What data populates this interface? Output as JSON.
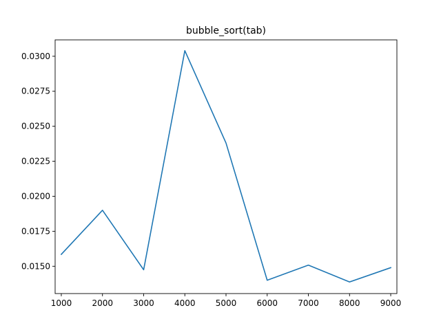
{
  "chart_data": {
    "type": "line",
    "title": "bubble_sort(tab)",
    "xlabel": "",
    "ylabel": "",
    "x": [
      1000,
      2000,
      3000,
      4000,
      5000,
      6000,
      7000,
      8000,
      9000
    ],
    "x_ticks": [
      "1000",
      "2000",
      "3000",
      "4000",
      "5000",
      "6000",
      "7000",
      "8000",
      "9000"
    ],
    "y_ticks": [
      "0.0150",
      "0.0175",
      "0.0200",
      "0.0225",
      "0.0250",
      "0.0275",
      "0.0300"
    ],
    "series": [
      {
        "color": "#1f77b4",
        "values": [
          0.01585,
          0.019,
          0.01475,
          0.0304,
          0.0238,
          0.014,
          0.01508,
          0.01388,
          0.0149
        ]
      }
    ],
    "xlim": [
      850,
      9150
    ],
    "ylim": [
      0.01305,
      0.03117
    ],
    "grid": false,
    "legend": "none"
  }
}
